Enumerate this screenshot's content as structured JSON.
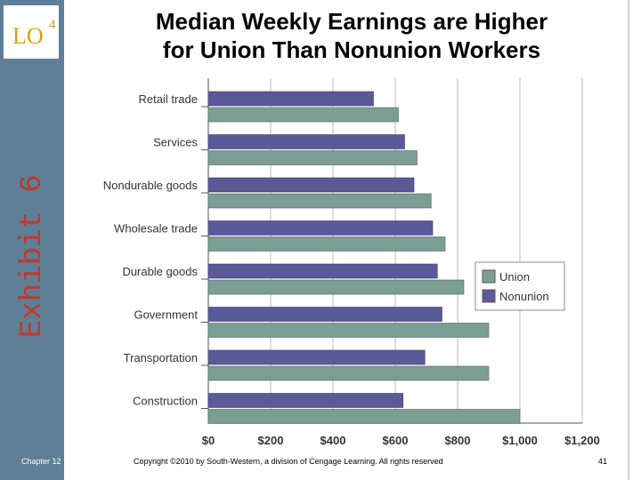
{
  "slide": {
    "lo_label": "LO",
    "lo_number": "4",
    "exhibit": "Exhibit 6",
    "title_line1": "Median Weekly Earnings are Higher",
    "title_line2": "for Union Than Nonunion Workers",
    "chapter": "Chapter 12",
    "copyright": "Copyright ©2010 by South-Western, a division of Cengage Learning. All rights reserved",
    "page_number": "41"
  },
  "colors": {
    "sidebar": "#5e7f96",
    "lo_text": "#d4a017",
    "exhibit_text": "#c0392b",
    "union": "#7b9e94",
    "nonunion": "#5b5a99"
  },
  "chart_data": {
    "type": "bar",
    "orientation": "horizontal",
    "categories": [
      "Retail trade",
      "Services",
      "Nondurable goods",
      "Wholesale trade",
      "Durable goods",
      "Government",
      "Transportation",
      "Construction"
    ],
    "series": [
      {
        "name": "Nonunion",
        "values": [
          530,
          630,
          660,
          720,
          735,
          750,
          695,
          625
        ]
      },
      {
        "name": "Union",
        "values": [
          610,
          670,
          715,
          760,
          820,
          900,
          900,
          1000
        ]
      }
    ],
    "xlim": [
      0,
      1200
    ],
    "xticks": [
      "$0",
      "$200",
      "$400",
      "$600",
      "$800",
      "$1,000",
      "$1,200"
    ],
    "grid": true,
    "legend": "right, middle"
  }
}
